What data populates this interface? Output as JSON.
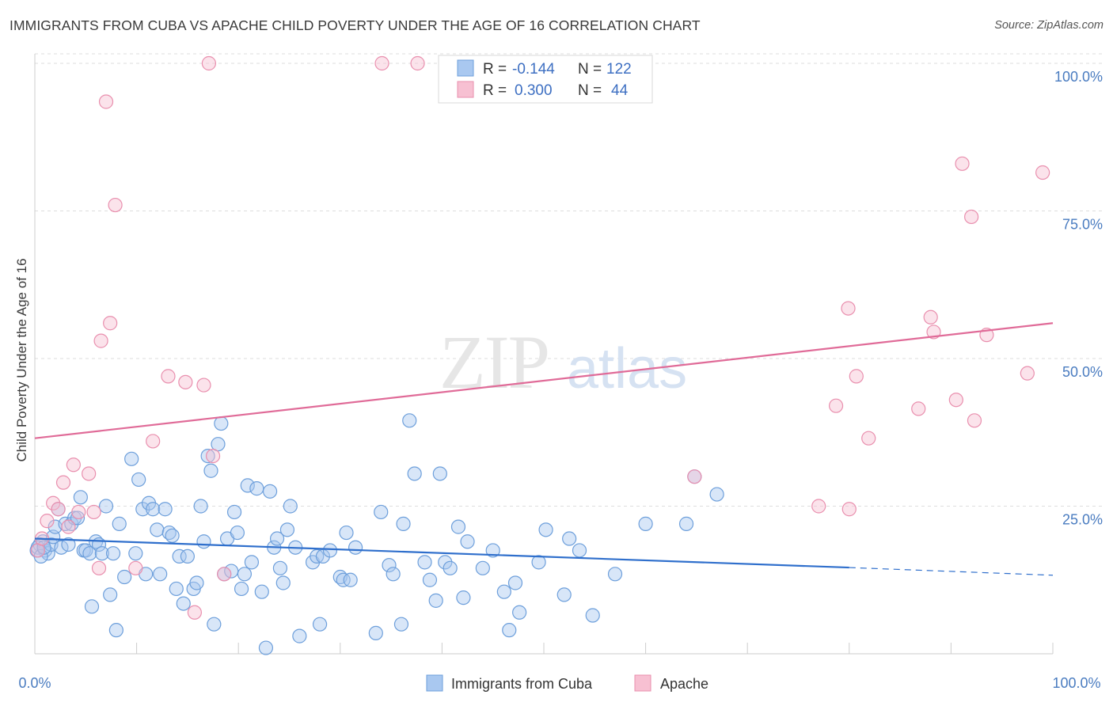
{
  "title": "IMMIGRANTS FROM CUBA VS APACHE CHILD POVERTY UNDER THE AGE OF 16 CORRELATION CHART",
  "source": "Source: ZipAtlas.com",
  "watermark": {
    "zip": "ZIP",
    "atlas": "atlas"
  },
  "colors": {
    "series_cuba_fill": "#a9c8f0",
    "series_cuba_stroke": "#6d9fdb",
    "series_cuba_line": "#2f6fcc",
    "series_apache_fill": "#f7c0d2",
    "series_apache_stroke": "#e98fae",
    "series_apache_line": "#e06b98",
    "tick_label": "#4a7cc0",
    "grid": "#dddddd"
  },
  "legend_top": {
    "rows": [
      {
        "r_label": "R =",
        "r_value": "-0.144",
        "n_label": "N =",
        "n_value": "122"
      },
      {
        "r_label": "R =",
        "r_value": "0.300",
        "n_label": "N =",
        "n_value": "44"
      }
    ]
  },
  "legend_bottom": {
    "items": [
      "Immigrants from Cuba",
      "Apache"
    ]
  },
  "chart_data": {
    "type": "scatter",
    "title": "IMMIGRANTS FROM CUBA VS APACHE CHILD POVERTY UNDER THE AGE OF 16 CORRELATION CHART",
    "xlabel": "",
    "ylabel": "Child Poverty Under the Age of 16",
    "xlim": [
      0,
      100
    ],
    "ylim": [
      0,
      100
    ],
    "x_tick_labels": [
      "0.0%",
      "100.0%"
    ],
    "y_tick_labels": [
      "100.0%",
      "75.0%",
      "50.0%",
      "25.0%"
    ],
    "y_ticks": [
      100,
      75,
      50,
      25
    ],
    "grid": true,
    "legend_position": "top-center",
    "series": [
      {
        "name": "Immigrants from Cuba",
        "r": -0.144,
        "n": 122,
        "trend": {
          "x": [
            0,
            80,
            100
          ],
          "y": [
            19.5,
            14.6,
            13.3
          ],
          "solid_until": 80
        },
        "points": [
          [
            0.2,
            17.5
          ],
          [
            0.5,
            18.5
          ],
          [
            0.8,
            19
          ],
          [
            1.0,
            17.5
          ],
          [
            1.3,
            17.0
          ],
          [
            1.6,
            18.5
          ],
          [
            1.8,
            19.8
          ],
          [
            2.0,
            21.5
          ],
          [
            2.3,
            24.5
          ],
          [
            2.6,
            18.0
          ],
          [
            3.0,
            22.0
          ],
          [
            3.3,
            18.5
          ],
          [
            3.6,
            22.0
          ],
          [
            3.9,
            23.0
          ],
          [
            4.2,
            23.0
          ],
          [
            4.5,
            26.5
          ],
          [
            4.8,
            17.5
          ],
          [
            5.0,
            17.5
          ],
          [
            5.4,
            17.0
          ],
          [
            5.6,
            8.0
          ],
          [
            6.0,
            19.0
          ],
          [
            6.3,
            18.5
          ],
          [
            6.6,
            17.0
          ],
          [
            7.0,
            25.0
          ],
          [
            7.4,
            10.0
          ],
          [
            7.7,
            17.0
          ],
          [
            8.0,
            4.0
          ],
          [
            8.3,
            22.0
          ],
          [
            8.8,
            13.0
          ],
          [
            9.5,
            33.0
          ],
          [
            9.9,
            17.0
          ],
          [
            10.2,
            29.5
          ],
          [
            10.6,
            24.5
          ],
          [
            10.9,
            13.5
          ],
          [
            11.2,
            25.5
          ],
          [
            11.6,
            24.5
          ],
          [
            12.0,
            21.0
          ],
          [
            12.3,
            13.5
          ],
          [
            12.8,
            24.5
          ],
          [
            13.2,
            20.5
          ],
          [
            13.5,
            20.0
          ],
          [
            13.9,
            11.0
          ],
          [
            14.2,
            16.5
          ],
          [
            14.6,
            8.5
          ],
          [
            15.0,
            16.5
          ],
          [
            15.6,
            11.0
          ],
          [
            15.9,
            12.0
          ],
          [
            16.3,
            25.0
          ],
          [
            16.6,
            19.0
          ],
          [
            17.0,
            33.5
          ],
          [
            17.3,
            31.0
          ],
          [
            17.6,
            5.0
          ],
          [
            18.0,
            35.5
          ],
          [
            18.3,
            39.0
          ],
          [
            18.6,
            13.5
          ],
          [
            18.9,
            19.5
          ],
          [
            19.3,
            14.0
          ],
          [
            19.6,
            24.0
          ],
          [
            19.9,
            20.5
          ],
          [
            20.3,
            11.0
          ],
          [
            20.6,
            13.5
          ],
          [
            20.9,
            28.5
          ],
          [
            21.3,
            15.5
          ],
          [
            21.8,
            28.0
          ],
          [
            22.3,
            10.5
          ],
          [
            22.7,
            1.0
          ],
          [
            23.1,
            27.5
          ],
          [
            23.5,
            18.0
          ],
          [
            23.8,
            19.5
          ],
          [
            24.1,
            14.5
          ],
          [
            24.4,
            12.0
          ],
          [
            24.8,
            21.0
          ],
          [
            25.1,
            25.0
          ],
          [
            25.6,
            18.0
          ],
          [
            26.0,
            3.0
          ],
          [
            27.3,
            15.5
          ],
          [
            27.7,
            16.5
          ],
          [
            28.0,
            5.0
          ],
          [
            28.3,
            16.5
          ],
          [
            29.0,
            17.5
          ],
          [
            30.0,
            13.0
          ],
          [
            30.3,
            12.5
          ],
          [
            30.6,
            20.5
          ],
          [
            31.0,
            12.5
          ],
          [
            31.5,
            18.0
          ],
          [
            33.5,
            3.5
          ],
          [
            34.0,
            24.0
          ],
          [
            34.8,
            15.0
          ],
          [
            35.2,
            13.5
          ],
          [
            36.2,
            22.0
          ],
          [
            36.8,
            39.5
          ],
          [
            37.3,
            30.5
          ],
          [
            38.3,
            15.5
          ],
          [
            38.8,
            12.5
          ],
          [
            39.4,
            9.0
          ],
          [
            39.8,
            30.5
          ],
          [
            40.3,
            15.5
          ],
          [
            40.8,
            14.5
          ],
          [
            41.6,
            21.5
          ],
          [
            42.1,
            9.5
          ],
          [
            42.5,
            19.0
          ],
          [
            44.0,
            14.5
          ],
          [
            45.0,
            17.5
          ],
          [
            46.1,
            10.5
          ],
          [
            46.6,
            4.0
          ],
          [
            47.2,
            12.0
          ],
          [
            47.6,
            7.0
          ],
          [
            49.5,
            15.5
          ],
          [
            50.2,
            21.0
          ],
          [
            52.0,
            10.0
          ],
          [
            52.5,
            19.5
          ],
          [
            53.5,
            17.5
          ],
          [
            54.8,
            6.5
          ],
          [
            57.0,
            13.5
          ],
          [
            60.0,
            22.0
          ],
          [
            64.0,
            22.0
          ],
          [
            64.8,
            30.0
          ],
          [
            67.0,
            27.0
          ],
          [
            0.3,
            18.0
          ],
          [
            0.6,
            16.5
          ],
          [
            0.9,
            18.0
          ],
          [
            36.0,
            5.0
          ]
        ]
      },
      {
        "name": "Apache",
        "r": 0.3,
        "n": 44,
        "trend": {
          "x": [
            0,
            100
          ],
          "y": [
            36.5,
            56.0
          ]
        },
        "points": [
          [
            0.3,
            17.5
          ],
          [
            0.7,
            19.5
          ],
          [
            1.2,
            22.5
          ],
          [
            1.8,
            25.5
          ],
          [
            2.3,
            24.5
          ],
          [
            2.8,
            29.0
          ],
          [
            3.3,
            21.5
          ],
          [
            3.8,
            32.0
          ],
          [
            4.3,
            24.0
          ],
          [
            5.3,
            30.5
          ],
          [
            5.8,
            24.0
          ],
          [
            6.3,
            14.5
          ],
          [
            6.5,
            53.0
          ],
          [
            7.0,
            93.5
          ],
          [
            7.4,
            56.0
          ],
          [
            7.9,
            76.0
          ],
          [
            9.9,
            14.5
          ],
          [
            11.6,
            36.0
          ],
          [
            13.1,
            47.0
          ],
          [
            14.8,
            46.0
          ],
          [
            15.7,
            7.0
          ],
          [
            16.6,
            45.5
          ],
          [
            17.1,
            100.0
          ],
          [
            17.5,
            33.5
          ],
          [
            18.6,
            13.5
          ],
          [
            34.1,
            100.0
          ],
          [
            37.6,
            100.0
          ],
          [
            64.8,
            30.0
          ],
          [
            77.0,
            25.0
          ],
          [
            78.7,
            42.0
          ],
          [
            80.0,
            24.5
          ],
          [
            80.7,
            47.0
          ],
          [
            81.9,
            36.5
          ],
          [
            79.9,
            58.5
          ],
          [
            86.8,
            41.5
          ],
          [
            88.0,
            57.0
          ],
          [
            88.3,
            54.5
          ],
          [
            90.5,
            43.0
          ],
          [
            91.1,
            83.0
          ],
          [
            92.0,
            74.0
          ],
          [
            92.3,
            39.5
          ],
          [
            93.5,
            54.0
          ],
          [
            97.5,
            47.5
          ],
          [
            99.0,
            81.5
          ]
        ]
      }
    ]
  }
}
